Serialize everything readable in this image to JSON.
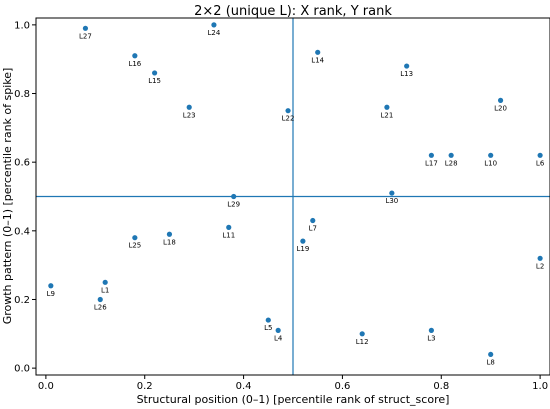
{
  "chart_data": {
    "type": "scatter",
    "title": "2×2 (unique L): X rank, Y rank",
    "xlabel": "Structural position (0–1) [percentile rank of struct_score]",
    "ylabel": "Growth pattern (0–1) [percentile rank of spike]",
    "xlim": [
      -0.02,
      1.02
    ],
    "ylim": [
      -0.02,
      1.02
    ],
    "xticks": [
      0.0,
      0.2,
      0.4,
      0.6,
      0.8,
      1.0
    ],
    "yticks": [
      0.0,
      0.2,
      0.4,
      0.6,
      0.8,
      1.0
    ],
    "tick_labels": [
      "0.0",
      "0.2",
      "0.4",
      "0.6",
      "0.8",
      "1.0"
    ],
    "grid": false,
    "reference_lines": {
      "x": 0.5,
      "y": 0.5
    },
    "marker_color": "#1f77b4",
    "points": [
      {
        "label": "L1",
        "x": 0.12,
        "y": 0.25
      },
      {
        "label": "L2",
        "x": 1.0,
        "y": 0.32
      },
      {
        "label": "L3",
        "x": 0.78,
        "y": 0.11
      },
      {
        "label": "L4",
        "x": 0.47,
        "y": 0.11
      },
      {
        "label": "L5",
        "x": 0.45,
        "y": 0.14
      },
      {
        "label": "L6",
        "x": 1.0,
        "y": 0.62
      },
      {
        "label": "L7",
        "x": 0.54,
        "y": 0.43
      },
      {
        "label": "L8",
        "x": 0.9,
        "y": 0.04
      },
      {
        "label": "L9",
        "x": 0.01,
        "y": 0.24
      },
      {
        "label": "L10",
        "x": 0.9,
        "y": 0.62
      },
      {
        "label": "L11",
        "x": 0.37,
        "y": 0.41
      },
      {
        "label": "L12",
        "x": 0.64,
        "y": 0.1
      },
      {
        "label": "L13",
        "x": 0.73,
        "y": 0.88
      },
      {
        "label": "L14",
        "x": 0.55,
        "y": 0.92
      },
      {
        "label": "L15",
        "x": 0.22,
        "y": 0.86
      },
      {
        "label": "L16",
        "x": 0.18,
        "y": 0.91
      },
      {
        "label": "L17",
        "x": 0.78,
        "y": 0.62
      },
      {
        "label": "L18",
        "x": 0.25,
        "y": 0.39
      },
      {
        "label": "L19",
        "x": 0.52,
        "y": 0.37
      },
      {
        "label": "L20",
        "x": 0.92,
        "y": 0.78
      },
      {
        "label": "L21",
        "x": 0.69,
        "y": 0.76
      },
      {
        "label": "L22",
        "x": 0.49,
        "y": 0.75
      },
      {
        "label": "L23",
        "x": 0.29,
        "y": 0.76
      },
      {
        "label": "L24",
        "x": 0.34,
        "y": 1.0
      },
      {
        "label": "L25",
        "x": 0.18,
        "y": 0.38
      },
      {
        "label": "L26",
        "x": 0.11,
        "y": 0.2
      },
      {
        "label": "L27",
        "x": 0.08,
        "y": 0.99
      },
      {
        "label": "L28",
        "x": 0.82,
        "y": 0.62
      },
      {
        "label": "L29",
        "x": 0.38,
        "y": 0.5
      },
      {
        "label": "L30",
        "x": 0.7,
        "y": 0.51
      }
    ]
  }
}
